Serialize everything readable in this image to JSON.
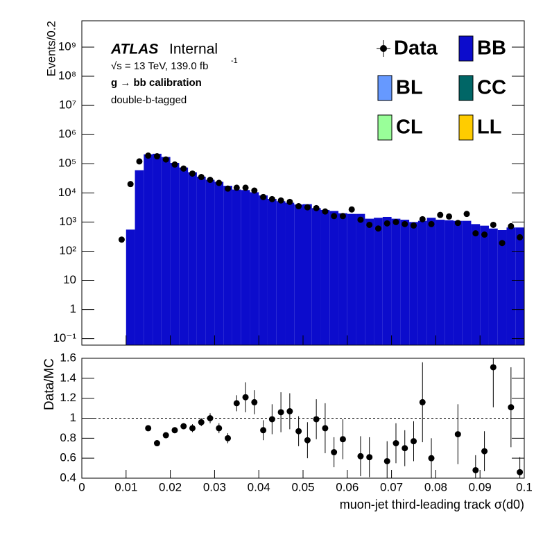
{
  "chart_data": [
    {
      "type": "histogram",
      "y_label": "Events/0.2",
      "log_y": true,
      "ylim": [
        0.06,
        8000000000
      ],
      "yticks": [
        {
          "value": 0.1,
          "label": "10⁻¹"
        },
        1,
        10,
        {
          "value": 100,
          "label": "10²"
        },
        {
          "value": 1000,
          "label": "10³"
        },
        {
          "value": 10000,
          "label": "10⁴"
        },
        {
          "value": 100000,
          "label": "10⁵"
        },
        {
          "value": 1000000,
          "label": "10⁶"
        },
        {
          "value": 10000000,
          "label": "10⁷"
        },
        {
          "value": 100000000,
          "label": "10⁸"
        },
        {
          "value": 1000000000,
          "label": "10⁹"
        }
      ],
      "xlim": [
        0,
        0.1
      ],
      "bins": [
        0.01,
        0.012,
        0.014,
        0.016,
        0.018,
        0.02,
        0.022,
        0.024,
        0.026,
        0.028,
        0.03,
        0.032,
        0.034,
        0.036,
        0.038,
        0.04,
        0.042,
        0.044,
        0.046,
        0.048,
        0.05,
        0.052,
        0.054,
        0.056,
        0.058,
        0.06,
        0.062,
        0.064,
        0.066,
        0.068,
        0.07,
        0.072,
        0.074,
        0.076,
        0.078,
        0.08,
        0.082,
        0.084,
        0.086,
        0.088,
        0.09,
        0.092,
        0.094,
        0.096,
        0.098,
        0.1
      ],
      "series": [
        {
          "name": "BB",
          "color": "#0c0ccc",
          "values": [
            550,
            60000,
            210000,
            220000,
            170000,
            107000,
            74000,
            51000,
            36000,
            28000,
            24000,
            17500,
            13000,
            12500,
            10500,
            8200,
            6200,
            5200,
            4600,
            4000,
            4100,
            3000,
            2600,
            2400,
            2000,
            1900,
            1900,
            1300,
            1400,
            1500,
            1300,
            1200,
            1000,
            1100,
            1400,
            1200,
            1150,
            1100,
            1100,
            850,
            750,
            600,
            530,
            650,
            650
          ]
        },
        {
          "name": "BL",
          "color": "#6699ff"
        },
        {
          "name": "CC",
          "color": "#006666"
        },
        {
          "name": "CL",
          "color": "#99ff99"
        },
        {
          "name": "LL",
          "color": "#ffcc00"
        }
      ],
      "data": {
        "name": "Data",
        "color": "#000000",
        "x": [
          0.009,
          0.011,
          0.013,
          0.015,
          0.017,
          0.019,
          0.021,
          0.023,
          0.025,
          0.027,
          0.029,
          0.031,
          0.033,
          0.035,
          0.037,
          0.039,
          0.041,
          0.043,
          0.045,
          0.047,
          0.049,
          0.051,
          0.053,
          0.055,
          0.057,
          0.059,
          0.061,
          0.063,
          0.065,
          0.067,
          0.069,
          0.071,
          0.073,
          0.075,
          0.077,
          0.079,
          0.081,
          0.083,
          0.085,
          0.087,
          0.089,
          0.091,
          0.093,
          0.095,
          0.097,
          0.099
        ],
        "values": [
          250,
          20000,
          120000,
          190000,
          180000,
          140000,
          94000,
          68000,
          46000,
          35000,
          28000,
          22000,
          14000,
          15000,
          15000,
          12000,
          7200,
          6100,
          5500,
          4900,
          3500,
          3200,
          3000,
          2300,
          1600,
          1600,
          2700,
          1200,
          800,
          600,
          900,
          1000,
          850,
          760,
          1250,
          850,
          1750,
          1550,
          930,
          1900,
          410,
          370,
          800,
          190,
          720,
          300
        ]
      },
      "annotations": {
        "experiment": "ATLAS",
        "status": "Internal",
        "lumi": "√s = 13 TeV, 139.0 fb",
        "lumi_exponent": "-1",
        "selection": "g  → bb calibration",
        "tagging": "double-b-tagged"
      }
    },
    {
      "type": "ratio",
      "y_label": "Data/MC",
      "x_label": "muon-jet third-leading track σ(d0)",
      "ylim": [
        0.4,
        1.6
      ],
      "yticks": [
        0.4,
        0.6,
        0.8,
        1,
        1.2,
        1.4,
        1.6
      ],
      "xlim": [
        0,
        0.1
      ],
      "xticks": [
        0,
        0.01,
        0.02,
        0.03,
        0.04,
        0.05,
        0.06,
        0.07,
        0.08,
        0.09,
        0.1
      ],
      "reference_line": 1,
      "color": "#000000",
      "x": [
        0.015,
        0.017,
        0.019,
        0.021,
        0.023,
        0.025,
        0.027,
        0.029,
        0.031,
        0.033,
        0.035,
        0.037,
        0.039,
        0.041,
        0.043,
        0.045,
        0.047,
        0.049,
        0.051,
        0.053,
        0.055,
        0.057,
        0.059,
        0.061,
        0.063,
        0.065,
        0.067,
        0.069,
        0.071,
        0.073,
        0.075,
        0.077,
        0.079,
        0.081,
        0.083,
        0.085,
        0.087,
        0.089,
        0.091,
        0.093,
        0.095,
        0.097,
        0.099
      ],
      "values": [
        0.9,
        0.75,
        0.83,
        0.88,
        0.92,
        0.9,
        0.96,
        1.0,
        0.9,
        0.8,
        1.15,
        1.21,
        1.16,
        0.88,
        0.99,
        1.06,
        1.07,
        0.87,
        0.78,
        0.99,
        0.9,
        0.66,
        0.79,
        null,
        0.62,
        0.61,
        null,
        0.57,
        0.75,
        0.7,
        0.77,
        1.16,
        0.6,
        null,
        null,
        0.84,
        null,
        0.48,
        0.67,
        1.51,
        null,
        1.11,
        0.46
      ],
      "errors": [
        0.02,
        0.02,
        0.02,
        0.03,
        0.03,
        0.04,
        0.04,
        0.05,
        0.05,
        0.05,
        0.08,
        0.15,
        0.12,
        0.1,
        0.15,
        0.2,
        0.18,
        0.15,
        0.18,
        0.2,
        0.25,
        0.15,
        0.2,
        null,
        0.2,
        0.2,
        null,
        0.2,
        0.2,
        0.18,
        0.2,
        0.4,
        0.2,
        null,
        null,
        0.3,
        null,
        0.15,
        0.2,
        0.4,
        null,
        0.4,
        0.15
      ]
    }
  ]
}
